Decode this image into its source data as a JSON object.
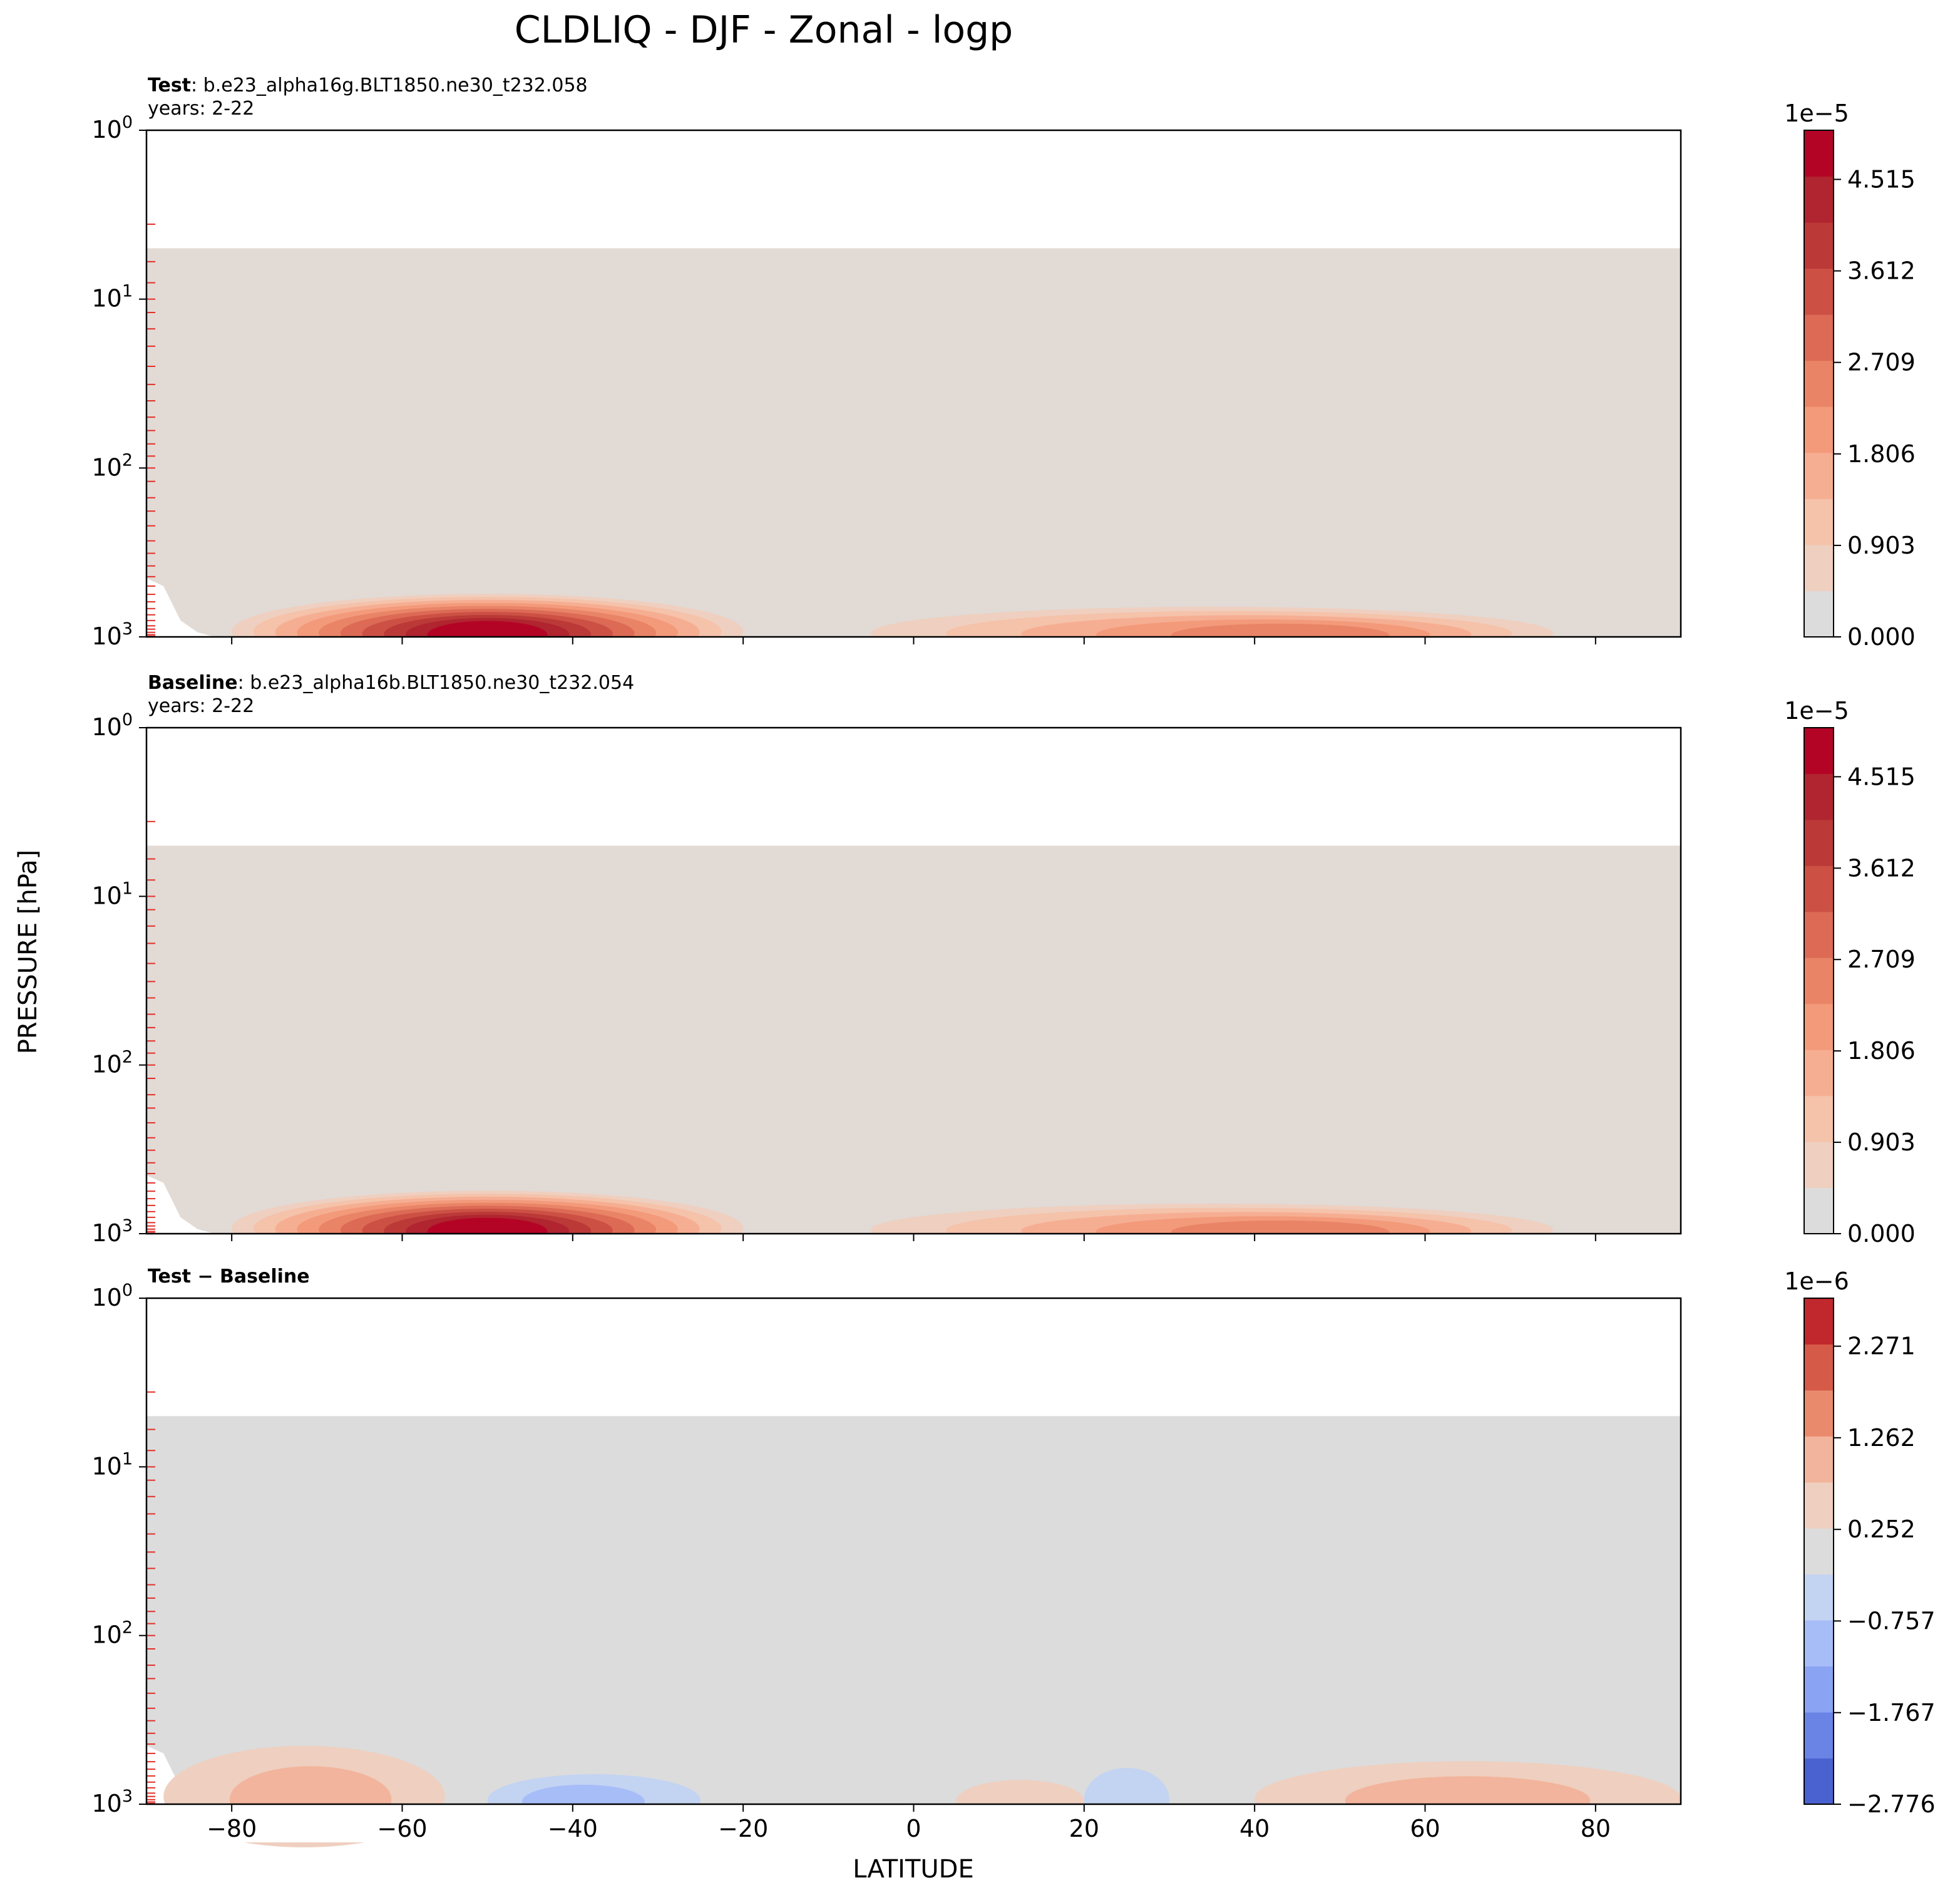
{
  "figure": {
    "title": "CLDLIQ - DJF - Zonal - logp",
    "ylabel": "PRESSURE [hPa]",
    "xlabel": "LATITUDE"
  },
  "colors": {
    "fill_warm": "#e2dad5",
    "fill_grey": "#dcdcdc",
    "tick_red": "#e0302a",
    "cmap_bottom": "#3b4cc0",
    "cmap_mid": "#dddddd",
    "cmap_top": "#b40426"
  },
  "chart_data": [
    {
      "type": "contourf",
      "panel": "test",
      "label_bold": "Test",
      "label_text": ": b.e23_alpha16g.BLT1850.ne30_t232.058",
      "subtitle": "years: 2-22",
      "x_ticks": [
        -80,
        -60,
        -40,
        -20,
        0,
        20,
        40,
        60,
        80
      ],
      "x_tick_labels_visible": false,
      "xlim": [
        -90,
        90
      ],
      "y_scale": "log",
      "y_inverted": true,
      "ylim": [
        1000,
        1
      ],
      "y_ticks": [
        1,
        10,
        100,
        1000
      ],
      "y_tick_labels": [
        {
          "base": "10",
          "exp": "0"
        },
        {
          "base": "10",
          "exp": "1"
        },
        {
          "base": "10",
          "exp": "2"
        },
        {
          "base": "10",
          "exp": "3"
        }
      ],
      "data_top_hPa": 5,
      "colorbar": {
        "multiplier": "1e−5",
        "vmin": 0.0,
        "vmax": 5.0,
        "ticks": [
          0.0,
          0.903,
          1.806,
          2.709,
          3.612,
          4.515
        ],
        "tick_labels": [
          "0.000",
          "0.903",
          "1.806",
          "2.709",
          "3.612",
          "4.515"
        ],
        "n_levels": 11,
        "palette": [
          "#dcdcdc",
          "#efcfbf",
          "#f5c2aa",
          "#f6ae92",
          "#f39a7b",
          "#e98467",
          "#dc6a55",
          "#cc5144",
          "#bb3a38",
          "#b0252f",
          "#b40426"
        ]
      },
      "features": [
        {
          "lat_start": -80,
          "lat_end": -20,
          "lat_peak": -50,
          "p_top": 600,
          "peak": 4.8
        },
        {
          "lat_start": -5,
          "lat_end": 75,
          "lat_peak": 45,
          "p_top": 700,
          "peak": 2.4
        }
      ]
    },
    {
      "type": "contourf",
      "panel": "baseline",
      "label_bold": "Baseline",
      "label_text": ": b.e23_alpha16b.BLT1850.ne30_t232.054",
      "subtitle": "years: 2-22",
      "x_ticks": [
        -80,
        -60,
        -40,
        -20,
        0,
        20,
        40,
        60,
        80
      ],
      "x_tick_labels_visible": false,
      "xlim": [
        -90,
        90
      ],
      "y_scale": "log",
      "y_inverted": true,
      "ylim": [
        1000,
        1
      ],
      "y_ticks": [
        1,
        10,
        100,
        1000
      ],
      "y_tick_labels": [
        {
          "base": "10",
          "exp": "0"
        },
        {
          "base": "10",
          "exp": "1"
        },
        {
          "base": "10",
          "exp": "2"
        },
        {
          "base": "10",
          "exp": "3"
        }
      ],
      "data_top_hPa": 5,
      "colorbar": {
        "multiplier": "1e−5",
        "vmin": 0.0,
        "vmax": 5.0,
        "ticks": [
          0.0,
          0.903,
          1.806,
          2.709,
          3.612,
          4.515
        ],
        "tick_labels": [
          "0.000",
          "0.903",
          "1.806",
          "2.709",
          "3.612",
          "4.515"
        ],
        "n_levels": 11,
        "palette": [
          "#dcdcdc",
          "#efcfbf",
          "#f5c2aa",
          "#f6ae92",
          "#f39a7b",
          "#e98467",
          "#dc6a55",
          "#cc5144",
          "#bb3a38",
          "#b0252f",
          "#b40426"
        ]
      },
      "features": [
        {
          "lat_start": -80,
          "lat_end": -20,
          "lat_peak": -50,
          "p_top": 600,
          "peak": 4.8
        },
        {
          "lat_start": -5,
          "lat_end": 75,
          "lat_peak": 45,
          "p_top": 700,
          "peak": 2.4
        }
      ]
    },
    {
      "type": "contourf",
      "panel": "difference",
      "label_bold": "Test − Baseline",
      "label_text": "",
      "subtitle": "",
      "x_ticks": [
        -80,
        -60,
        -40,
        -20,
        0,
        20,
        40,
        60,
        80
      ],
      "x_tick_labels": [
        "−80",
        "−60",
        "−40",
        "−20",
        "0",
        "20",
        "40",
        "60",
        "80"
      ],
      "x_tick_labels_visible": true,
      "xlim": [
        -90,
        90
      ],
      "y_scale": "log",
      "y_inverted": true,
      "ylim": [
        1000,
        1
      ],
      "y_ticks": [
        1,
        10,
        100,
        1000
      ],
      "y_tick_labels": [
        {
          "base": "10",
          "exp": "0"
        },
        {
          "base": "10",
          "exp": "1"
        },
        {
          "base": "10",
          "exp": "2"
        },
        {
          "base": "10",
          "exp": "3"
        }
      ],
      "data_top_hPa": 5,
      "colorbar": {
        "multiplier": "1e−6",
        "vmin": -2.776,
        "vmax": 2.8,
        "ticks": [
          -2.776,
          -1.767,
          -0.757,
          0.252,
          1.262,
          2.271
        ],
        "tick_labels": [
          "−2.776",
          "−1.767",
          "−0.757",
          "0.252",
          "1.262",
          "2.271"
        ],
        "n_levels": 11,
        "palette": [
          "#4a62d0",
          "#6a84e6",
          "#8aa3f3",
          "#a7bdf8",
          "#c3d3f2",
          "#dcdcdc",
          "#efcfbf",
          "#f2b49c",
          "#ea8a6c",
          "#d65a48",
          "#c0282d"
        ]
      },
      "features": [
        {
          "lat_start": -88,
          "lat_end": -55,
          "lat_peak": -70,
          "p_top": 500,
          "peak": 0.8
        },
        {
          "lat_start": -50,
          "lat_end": -25,
          "lat_peak": -40,
          "p_top": 700,
          "peak": -1.2
        },
        {
          "lat_start": 5,
          "lat_end": 20,
          "lat_peak": 12,
          "p_top": 750,
          "peak": 0.6
        },
        {
          "lat_start": 20,
          "lat_end": 30,
          "lat_peak": 27,
          "p_top": 650,
          "peak": -0.6
        },
        {
          "lat_start": 40,
          "lat_end": 90,
          "lat_peak": 65,
          "p_top": 600,
          "peak": 1.0
        }
      ]
    }
  ]
}
